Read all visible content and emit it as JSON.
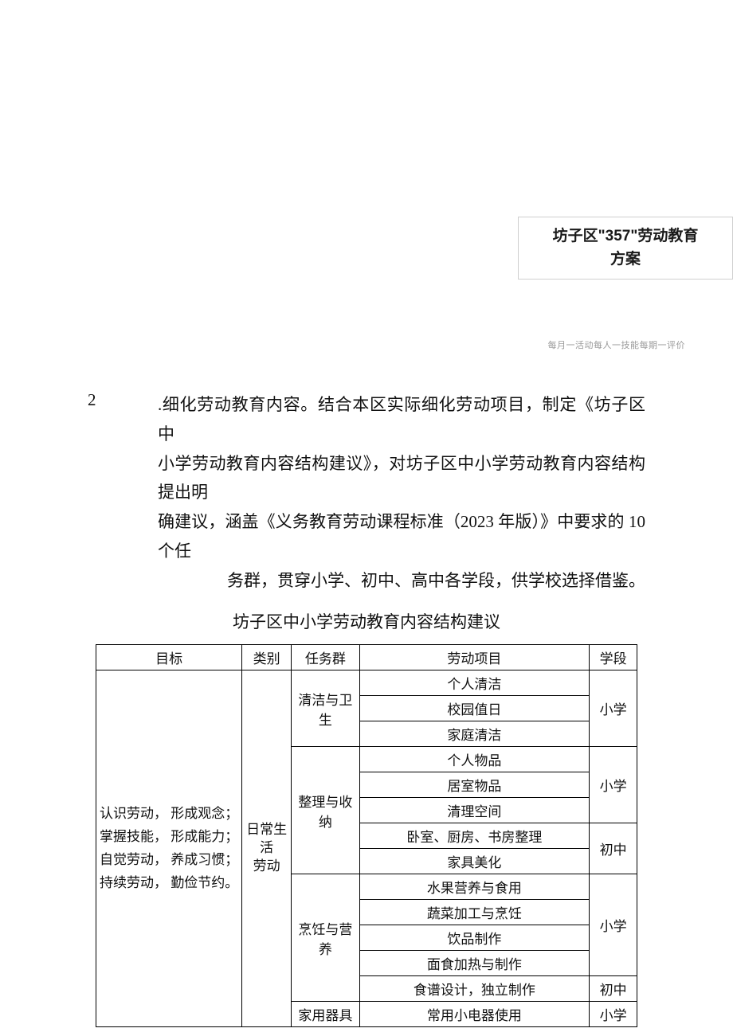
{
  "badge": {
    "line1": "坊子区\"357\"劳动教育",
    "line2": "方案"
  },
  "small_caption": "每月一活动每人一技能每期一评价",
  "list_number": "2",
  "paragraph": {
    "line1": ".细化劳动教育内容。结合本区实际细化劳动项目，制定《坊子区中",
    "line2": "小学劳动教育内容结构建议》，对坊子区中小学劳动教育内容结构提出明",
    "line3": "确建议，涵盖《义务教育劳动课程标准（2023 年版）》中要求的 10 个任",
    "line4": "务群，贯穿小学、初中、高中各学段，供学校选择借鉴。"
  },
  "table_title": "坊子区中小学劳动教育内容结构建议",
  "headers": {
    "target": "目标",
    "category": "类别",
    "taskgroup": "任务群",
    "project": "劳动项目",
    "stage": "学段"
  },
  "target_lines": {
    "a": "认识劳动，  形成观念；",
    "b": "掌握技能，  形成能力；",
    "c": "自觉劳动，  养成习惯；",
    "d": "持续劳动，  勤俭节约。"
  },
  "category": "日常生活劳动",
  "tasks": {
    "clean": "清洁与卫生",
    "organize": "整理与收纳",
    "cook": "烹饪与营养",
    "appliance": "家用器具"
  },
  "projects": {
    "p1": "个人清洁",
    "p2": "校园值日",
    "p3": "家庭清洁",
    "p4": "个人物品",
    "p5": "居室物品",
    "p6": "清理空间",
    "p7": "卧室、厨房、书房整理",
    "p8": "家具美化",
    "p9": "水果营养与食用",
    "p10": "蔬菜加工与烹饪",
    "p11": "饮品制作",
    "p12": "面食加热与制作",
    "p13": "食谱设计，独立制作",
    "p14": "常用小电器使用"
  },
  "stages": {
    "primary": "小学",
    "middle": "初中"
  }
}
